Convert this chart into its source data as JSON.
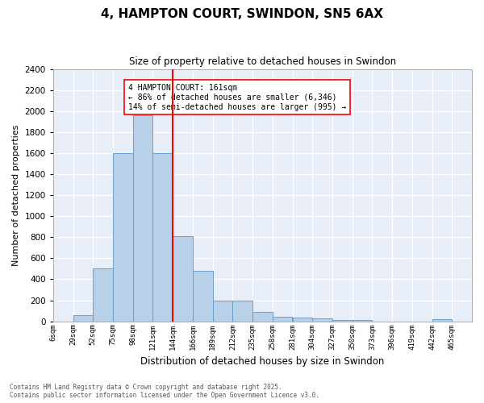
{
  "title": "4, HAMPTON COURT, SWINDON, SN5 6AX",
  "subtitle": "Size of property relative to detached houses in Swindon",
  "xlabel": "Distribution of detached houses by size in Swindon",
  "ylabel": "Number of detached properties",
  "footer_line1": "Contains HM Land Registry data © Crown copyright and database right 2025.",
  "footer_line2": "Contains public sector information licensed under the Open Government Licence v3.0.",
  "annotation_line1": "4 HAMPTON COURT: 161sqm",
  "annotation_line2": "← 86% of detached houses are smaller (6,346)",
  "annotation_line3": "14% of semi-detached houses are larger (995) →",
  "bar_color": "#b8d0e8",
  "bar_edge_color": "#6aa0c8",
  "vline_color": "red",
  "vline_x_index": 6,
  "background_color": "#e8eef8",
  "grid_color": "white",
  "categories": [
    "6sqm",
    "29sqm",
    "52sqm",
    "75sqm",
    "98sqm",
    "121sqm",
    "144sqm",
    "166sqm",
    "189sqm",
    "212sqm",
    "235sqm",
    "258sqm",
    "281sqm",
    "304sqm",
    "327sqm",
    "350sqm",
    "373sqm",
    "396sqm",
    "419sqm",
    "442sqm",
    "465sqm"
  ],
  "values": [
    0,
    60,
    500,
    1600,
    1960,
    1600,
    810,
    480,
    200,
    195,
    90,
    40,
    35,
    25,
    10,
    10,
    0,
    0,
    0,
    20,
    0
  ],
  "ylim": [
    0,
    2400
  ],
  "yticks": [
    0,
    200,
    400,
    600,
    800,
    1000,
    1200,
    1400,
    1600,
    1800,
    2000,
    2200,
    2400
  ],
  "figsize": [
    6.0,
    5.0
  ],
  "dpi": 100
}
